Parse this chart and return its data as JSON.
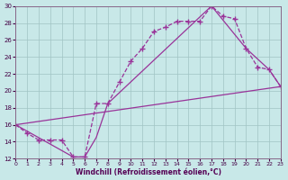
{
  "xlabel": "Windchill (Refroidissement éolien,°C)",
  "background_color": "#c8e8e8",
  "grid_color": "#a0c4c4",
  "line_color": "#993399",
  "xlim": [
    0,
    23
  ],
  "ylim": [
    12,
    30
  ],
  "xticks": [
    0,
    1,
    2,
    3,
    4,
    5,
    6,
    7,
    8,
    9,
    10,
    11,
    12,
    13,
    14,
    15,
    16,
    17,
    18,
    19,
    20,
    21,
    22,
    23
  ],
  "yticks": [
    12,
    14,
    16,
    18,
    20,
    22,
    24,
    26,
    28,
    30
  ],
  "curve1_x": [
    0,
    1,
    2,
    3,
    4,
    5,
    6,
    7,
    8,
    9,
    10,
    11,
    12,
    13,
    14,
    15,
    16,
    17,
    18,
    19,
    20,
    21,
    22,
    23
  ],
  "curve1_y": [
    16.0,
    15.0,
    14.2,
    14.2,
    14.2,
    12.2,
    12.2,
    18.5,
    18.5,
    21.0,
    23.5,
    25.0,
    27.0,
    27.5,
    28.2,
    28.2,
    28.2,
    30.0,
    28.8,
    28.5,
    25.0,
    22.8,
    22.5,
    20.5
  ],
  "curve2_x": [
    0,
    5,
    6,
    7,
    8,
    17,
    20,
    22,
    23
  ],
  "curve2_y": [
    16.0,
    12.2,
    12.2,
    14.5,
    18.5,
    30.0,
    25.0,
    22.5,
    20.5
  ],
  "curve3_x": [
    0,
    23
  ],
  "curve3_y": [
    16.0,
    20.5
  ]
}
